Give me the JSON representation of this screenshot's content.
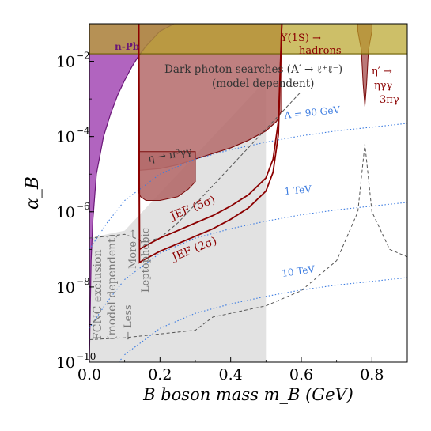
{
  "chart_data": {
    "type": "area",
    "xlabel": "B boson mass m_B (GeV)",
    "ylabel": "α_B",
    "xlim": [
      0.0,
      0.9
    ],
    "ylim_log10": [
      -10,
      -1
    ],
    "x_scale": "linear",
    "y_scale": "log",
    "x_ticks": [
      {
        "value": 0.0,
        "label": "0.0"
      },
      {
        "value": 0.2,
        "label": "0.2"
      },
      {
        "value": 0.4,
        "label": "0.4"
      },
      {
        "value": 0.6,
        "label": "0.6"
      },
      {
        "value": 0.8,
        "label": "0.8"
      }
    ],
    "y_ticks": [
      {
        "value": -10,
        "label": "10",
        "exp": "−10"
      },
      {
        "value": -8,
        "label": "10",
        "exp": "−8"
      },
      {
        "value": -6,
        "label": "10",
        "exp": "−6"
      },
      {
        "value": -4,
        "label": "10",
        "exp": "−4"
      },
      {
        "value": -2,
        "label": "10",
        "exp": "−2"
      }
    ],
    "colors": {
      "npb": "#a349b4",
      "npb_edge": "#6a1678",
      "hadrons_band": "#b8a428",
      "hadrons_edge": "#6b5e00",
      "dark_photon": "#b46a6a",
      "dark_photon_edge": "#7a0c0c",
      "jef": "#8b0000",
      "fcnc": "#e2e2e2",
      "fcnc_edge": "#555555",
      "lambda_lines": "#3b7be0",
      "text_dark_red": "#8b0000",
      "text_gray": "#7a7a7a"
    },
    "regions": [
      {
        "name": "n-Pb",
        "x": [
          0.0,
          0.005,
          0.01,
          0.02,
          0.04,
          0.06,
          0.08,
          0.1,
          0.12,
          0.14,
          0.16,
          0.2,
          0.24
        ],
        "upper_log": [
          -1,
          -1,
          -1,
          -1,
          -1,
          -1,
          -1,
          -1,
          -1,
          -1,
          -1,
          -1,
          -1
        ],
        "lower_log": [
          -10.0,
          -7.3,
          -6.2,
          -5.0,
          -4.0,
          -3.4,
          -2.9,
          -2.5,
          -2.15,
          -1.85,
          -1.6,
          -1.2,
          -1.0
        ]
      },
      {
        "name": "Υ(1S) → hadrons",
        "x": [
          0.0,
          0.9
        ],
        "lower_log": -1.8,
        "upper_log": -1.0
      },
      {
        "name": "Dark photon searches (A′ → ℓ⁺ℓ⁻) (model dependent)",
        "x": [
          0.14,
          0.2,
          0.25,
          0.3,
          0.35,
          0.4,
          0.45,
          0.5,
          0.53,
          0.545
        ],
        "upper_log": [
          -1,
          -1,
          -1,
          -1,
          -1,
          -1,
          -1,
          -1,
          -1,
          -1
        ],
        "lower_log": [
          -4.9,
          -4.85,
          -4.75,
          -4.6,
          -4.45,
          -4.3,
          -4.1,
          -3.85,
          -3.6,
          -3.3
        ]
      },
      {
        "name": "η → π⁰γγ",
        "x": [
          0.14,
          0.145,
          0.16,
          0.2,
          0.25,
          0.28,
          0.3
        ],
        "upper_log": [
          -4.4,
          -4.4,
          -4.4,
          -4.4,
          -4.4,
          -4.4,
          -4.4
        ],
        "lower_log": [
          -5.5,
          -5.6,
          -5.7,
          -5.7,
          -5.6,
          -5.4,
          -5.2
        ]
      },
      {
        "name": "η′ → ηγγ, 3πγ",
        "x": [
          0.76,
          0.77,
          0.775,
          0.78,
          0.785,
          0.79,
          0.8
        ],
        "upper_log": [
          -1,
          -1,
          -1,
          -1,
          -1,
          -1,
          -1
        ],
        "lower_log": [
          -1.2,
          -1.7,
          -2.6,
          -3.2,
          -2.6,
          -1.7,
          -1.2
        ]
      },
      {
        "name": "FCNC exclusion (model dependent)",
        "x": [
          0.0,
          0.05,
          0.1,
          0.15,
          0.2,
          0.25,
          0.3,
          0.35,
          0.4,
          0.45,
          0.5
        ],
        "upper_log": [
          -6.7,
          -6.6,
          -6.5,
          -6.0,
          -5.5,
          -5.0,
          -4.5,
          -4.0,
          -3.5,
          -3.0,
          -2.5
        ],
        "lower_log": [
          -10,
          -10,
          -10,
          -10,
          -10,
          -10,
          -10,
          -10,
          -10,
          -10,
          -10
        ]
      }
    ],
    "series": [
      {
        "name": "JEF (5σ)",
        "x": [
          0.14,
          0.142,
          0.15,
          0.2,
          0.25,
          0.3,
          0.35,
          0.4,
          0.45,
          0.5,
          0.52,
          0.535,
          0.545
        ],
        "y_log": [
          -1.0,
          -7.0,
          -6.95,
          -6.7,
          -6.5,
          -6.3,
          -6.1,
          -5.85,
          -5.55,
          -5.1,
          -4.6,
          -3.6,
          -1.0
        ]
      },
      {
        "name": "JEF (2σ)",
        "x": [
          0.14,
          0.142,
          0.15,
          0.2,
          0.25,
          0.3,
          0.35,
          0.4,
          0.45,
          0.5,
          0.52,
          0.535,
          0.545
        ],
        "y_log": [
          -1.0,
          -7.35,
          -7.3,
          -7.05,
          -6.85,
          -6.65,
          -6.45,
          -6.2,
          -5.9,
          -5.45,
          -4.95,
          -3.95,
          -1.0
        ]
      },
      {
        "name": "Λ = 90 GeV",
        "x": [
          0.0,
          0.05,
          0.1,
          0.2,
          0.3,
          0.4,
          0.5,
          0.6,
          0.7,
          0.8,
          0.9
        ],
        "y_log": [
          -7.0,
          -6.3,
          -5.7,
          -5.0,
          -4.6,
          -4.35,
          -4.15,
          -3.98,
          -3.85,
          -3.75,
          -3.65
        ]
      },
      {
        "name": "1 TeV",
        "x": [
          0.0,
          0.05,
          0.1,
          0.2,
          0.3,
          0.4,
          0.5,
          0.6,
          0.7,
          0.8,
          0.9
        ],
        "y_log": [
          -9.1,
          -8.4,
          -7.8,
          -7.1,
          -6.7,
          -6.45,
          -6.25,
          -6.08,
          -5.95,
          -5.85,
          -5.75
        ]
      },
      {
        "name": "10 TeV",
        "x": [
          0.0,
          0.05,
          0.1,
          0.2,
          0.3,
          0.4,
          0.5,
          0.6,
          0.7,
          0.8,
          0.9
        ],
        "y_log": [
          -11.1,
          -10.4,
          -9.8,
          -9.1,
          -8.7,
          -8.45,
          -8.25,
          -8.08,
          -7.95,
          -7.85,
          -7.75
        ]
      },
      {
        "name": "leptophobic-upper",
        "x": [
          0.0,
          0.05,
          0.1,
          0.13,
          0.15,
          0.2,
          0.25,
          0.3,
          0.35,
          0.4,
          0.45,
          0.5,
          0.55,
          0.6
        ],
        "y_log": [
          -6.7,
          -6.65,
          -6.6,
          -6.7,
          -6.8,
          -6.7,
          -6.3,
          -5.8,
          -5.3,
          -4.8,
          -4.3,
          -3.8,
          -3.3,
          -2.8
        ]
      },
      {
        "name": "leptophobic-lower",
        "x": [
          0.0,
          0.1,
          0.2,
          0.3,
          0.35,
          0.4,
          0.5,
          0.6,
          0.7,
          0.76,
          0.78,
          0.8,
          0.85,
          0.9
        ],
        "y_log": [
          -9.4,
          -9.35,
          -9.25,
          -9.15,
          -8.8,
          -8.7,
          -8.5,
          -8.1,
          -7.3,
          -6.0,
          -4.2,
          -6.0,
          -7.0,
          -7.2
        ]
      }
    ],
    "annotations": [
      {
        "name": "n-Pb-label",
        "text": "n-Pb"
      },
      {
        "name": "upsilon-label",
        "text": "Υ(1S) →"
      },
      {
        "name": "hadrons-label",
        "text": "hadrons"
      },
      {
        "name": "dark-photon-label",
        "text": "Dark photon searches (A′ → ℓ⁺ℓ⁻)"
      },
      {
        "name": "model-dependent-label",
        "text": "(model dependent)"
      },
      {
        "name": "eta-prime-label-1",
        "text": "η′ →"
      },
      {
        "name": "eta-prime-label-2",
        "text": "ηγγ"
      },
      {
        "name": "eta-prime-label-3",
        "text": "3πγ"
      },
      {
        "name": "eta-label",
        "text": "η → π⁰γγ"
      },
      {
        "name": "lambda-label",
        "text": "Λ = 90 GeV"
      },
      {
        "name": "tev1-label",
        "text": "1 TeV"
      },
      {
        "name": "tev10-label",
        "text": "10 TeV"
      },
      {
        "name": "jef5-label",
        "text": "JEF (5σ)"
      },
      {
        "name": "jef2-label",
        "text": "JEF (2σ)"
      },
      {
        "name": "fcnc-label-1",
        "text": "FCNC exclusion"
      },
      {
        "name": "fcnc-label-2",
        "text": "(model dependent)"
      },
      {
        "name": "leptophobic-label-1",
        "text": "More →"
      },
      {
        "name": "leptophobic-label-2",
        "text": "Leptophobic"
      },
      {
        "name": "leptophobic-label-3",
        "text": "← Less"
      }
    ]
  }
}
